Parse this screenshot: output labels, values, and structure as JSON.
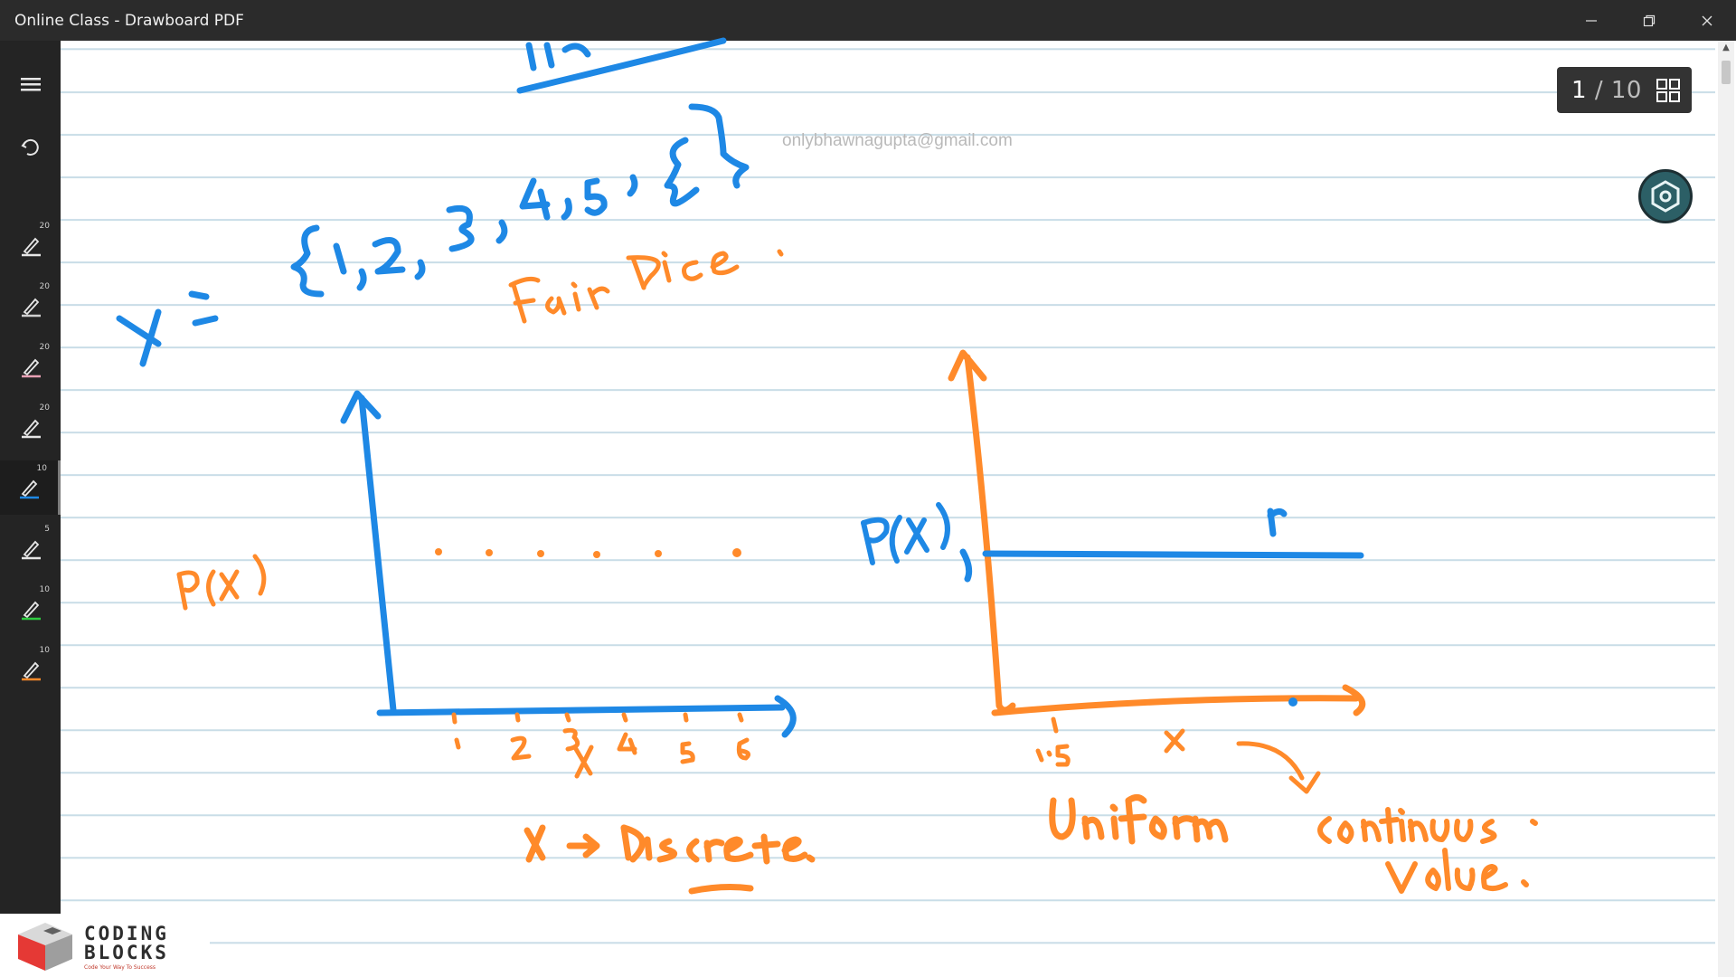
{
  "window": {
    "title": "Online Class - Drawboard PDF",
    "minimize_icon": "minimize-icon",
    "restore_icon": "restore-icon",
    "close_icon": "close-icon"
  },
  "sidebar": {
    "menu_icon": "hamburger-menu-icon",
    "undo_icon": "undo-icon",
    "pens": [
      {
        "size": "20",
        "color": "#e6e6e6"
      },
      {
        "size": "20",
        "color": "#d0d0d0"
      },
      {
        "size": "20",
        "color": "#e8a0b4"
      },
      {
        "size": "20",
        "color": "#e6e6e6"
      },
      {
        "size": "10",
        "color": "#1e88e5",
        "active": true
      },
      {
        "size": "5",
        "color": "#e6e6e6"
      },
      {
        "size": "10",
        "color": "#2ecc40"
      },
      {
        "size": "10",
        "color": "#ff8a2a"
      }
    ]
  },
  "page_counter": {
    "current": "1",
    "separator": "/",
    "total": "10",
    "grid_icon": "grid-view-icon"
  },
  "fab_icon": "hexagon-tool-icon",
  "watermark": "onlybhawnagupta@gmail.com",
  "colors": {
    "ink_blue": "#1e88e5",
    "ink_orange": "#ff8a2a",
    "titlebar": "#2b2b2b",
    "sidebar": "#242424",
    "ruled_line": "#c9dde7"
  },
  "logo": {
    "line1": "CODING",
    "line2": "BLOCKS",
    "tagline": "Code Your Way To Success"
  }
}
